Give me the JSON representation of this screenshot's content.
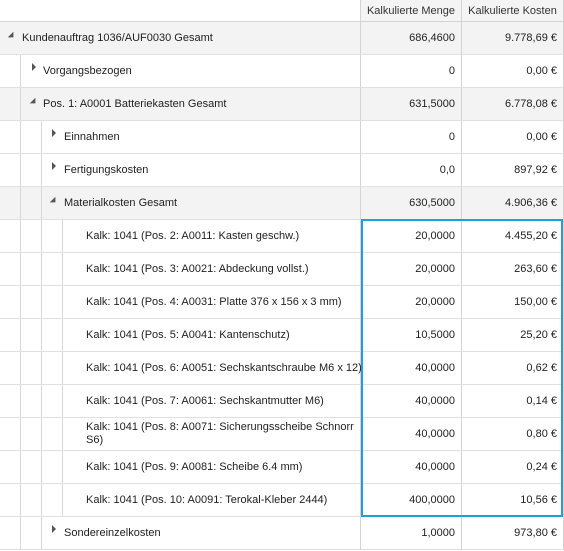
{
  "columns": {
    "menge": "Kalkulierte Menge",
    "kosten": "Kalkulierte Kosten"
  },
  "rows": [
    {
      "label": "Kundenauftrag 1036/AUF0030 Gesamt",
      "menge": "686,4600",
      "kosten": "9.778,69 €"
    },
    {
      "label": "Vorgangsbezogen",
      "menge": "0",
      "kosten": "0,00 €"
    },
    {
      "label": "Pos. 1: A0001 Batteriekasten Gesamt",
      "menge": "631,5000",
      "kosten": "6.778,08 €"
    },
    {
      "label": "Einnahmen",
      "menge": "0",
      "kosten": "0,00 €"
    },
    {
      "label": "Fertigungskosten",
      "menge": "0,0",
      "kosten": "897,92 €"
    },
    {
      "label": "Materialkosten Gesamt",
      "menge": "630,5000",
      "kosten": "4.906,36 €"
    },
    {
      "label": "Kalk: 1041 (Pos. 2: A0011: Kasten geschw.)",
      "menge": "20,0000",
      "kosten": "4.455,20 €"
    },
    {
      "label": "Kalk: 1041 (Pos. 3: A0021: Abdeckung vollst.)",
      "menge": "20,0000",
      "kosten": "263,60 €"
    },
    {
      "label": "Kalk: 1041 (Pos. 4: A0031: Platte 376 x 156 x 3 mm)",
      "menge": "20,0000",
      "kosten": "150,00 €"
    },
    {
      "label": "Kalk: 1041 (Pos. 5: A0041: Kantenschutz)",
      "menge": "10,5000",
      "kosten": "25,20 €"
    },
    {
      "label": "Kalk: 1041 (Pos. 6: A0051: Sechskantschraube  M6 x 12)",
      "menge": "40,0000",
      "kosten": "0,62 €"
    },
    {
      "label": "Kalk: 1041 (Pos. 7: A0061: Sechskantmutter M6)",
      "menge": "40,0000",
      "kosten": "0,14 €"
    },
    {
      "label": "Kalk: 1041 (Pos. 8: A0071: Sicherungsscheibe Schnorr S6)",
      "menge": "40,0000",
      "kosten": "0,80 €"
    },
    {
      "label": "Kalk: 1041 (Pos. 9: A0081: Scheibe 6.4 mm)",
      "menge": "40,0000",
      "kosten": "0,24 €"
    },
    {
      "label": "Kalk: 1041 (Pos. 10: A0091: Terokal-Kleber 2444)",
      "menge": "400,0000",
      "kosten": "10,56 €"
    },
    {
      "label": "Sondereinzelkosten",
      "menge": "1,0000",
      "kosten": "973,80 €"
    }
  ],
  "colors": {
    "highlight": "#1ea0d8"
  }
}
